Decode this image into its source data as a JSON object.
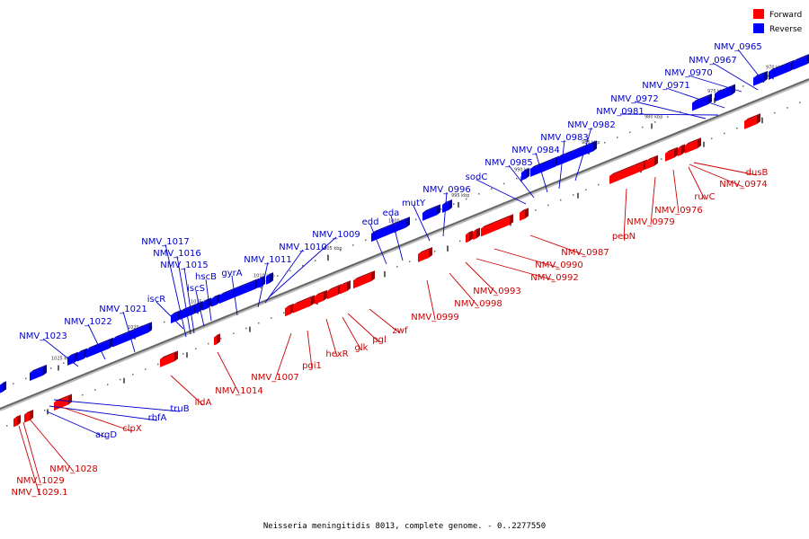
{
  "caption": "Neisseria meningitidis 8013, complete genome. - 0..2277550",
  "legend": {
    "forward": {
      "label": "Forward",
      "color": "#ff0000"
    },
    "reverse": {
      "label": "Reverse",
      "color": "#0000ff"
    }
  },
  "colors": {
    "reverse_label": "#0000cc",
    "forward_label": "#cc0000",
    "reverse_fill": "#0000ff",
    "forward_fill": "#ff0000",
    "axis": "#666666"
  },
  "scale_ticks": [
    "1025 kbp",
    "1020 kbp",
    "1015 kbp",
    "1010 kbp",
    "1005 kbp",
    "1000 kbp",
    "995 kbp",
    "990 kbp",
    "985 kbp",
    "980 kbp",
    "975 kbp",
    "970 kbp"
  ],
  "reverse_genes": [
    "NMV_0965",
    "NMV_0967",
    "NMV_0970",
    "NMV_0971",
    "NMV_0972",
    "NMV_0981",
    "NMV_0982",
    "NMV_0983",
    "NMV_0984",
    "NMV_0985",
    "sodC",
    "NMV_0996",
    "mutY",
    "eda",
    "edd",
    "NMV_1009",
    "NMV_1010",
    "NMV_1011",
    "gyrA",
    "hscB",
    "iscS",
    "iscR",
    "NMV_1015",
    "NMV_1016",
    "NMV_1017",
    "NMV_1021",
    "NMV_1022",
    "NMV_1023",
    "truB",
    "rbfA",
    "argD"
  ],
  "forward_genes": [
    "dusB",
    "NMV_0974",
    "ruvC",
    "NMV_0976",
    "NMV_0979",
    "pepN",
    "NMV_0987",
    "NMV_0990",
    "NMV_0992",
    "NMV_0993",
    "NMV_0998",
    "NMV_0999",
    "zwf",
    "pgl",
    "glk",
    "hexR",
    "pgi1",
    "NMV_1007",
    "NMV_1014",
    "lldA",
    "clpX",
    "NMV_1028",
    "NMV_1029",
    "NMV_1029.1"
  ]
}
